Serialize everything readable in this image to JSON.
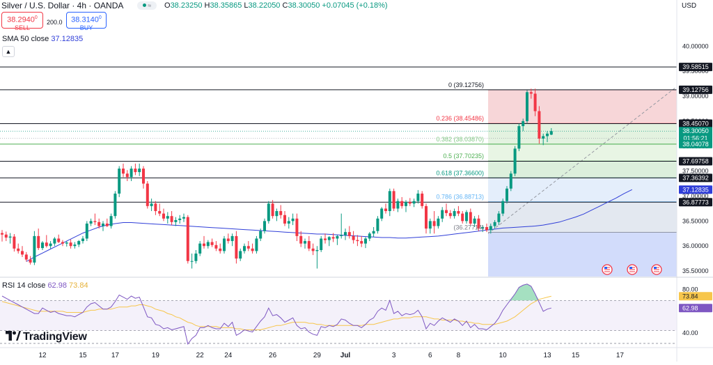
{
  "header": {
    "symbol_title": "Silver / U.S. Dollar · 4h · OANDA",
    "ohlc": {
      "o_label": "O",
      "o": "38.23250",
      "h_label": "H",
      "h": "38.35865",
      "l_label": "L",
      "l": "38.22050",
      "c_label": "C",
      "c": "38.30050",
      "change": "+0.07045 (+0.18%)"
    },
    "currency": "USD"
  },
  "trade": {
    "sell_price": "38.2940",
    "sell_sup": "0",
    "sell_label": "SELL",
    "spread": "200.0",
    "buy_price": "38.3140",
    "buy_sup": "0",
    "buy_label": "BUY"
  },
  "sma_legend": {
    "label": "SMA 50 close",
    "value": "37.12835"
  },
  "rsi_legend": {
    "label": "RSI 14 close",
    "value1": "62.98",
    "value2": "73.84"
  },
  "branding": {
    "logo_text": "TradingView"
  },
  "colors": {
    "up": "#089981",
    "down": "#f23645",
    "sma": "#2f3ed8",
    "rsi": "#7e57c2",
    "rsi_ma": "#f7c64b"
  },
  "chart_data": {
    "type": "candlestick",
    "price_axis": {
      "ylim": [
        35.39,
        40.06
      ],
      "ticks": [
        "40.00000",
        "39.50000",
        "39.00000",
        "38.50000",
        "38.00000",
        "37.50000",
        "37.00000",
        "36.50000",
        "36.00000",
        "35.50000"
      ],
      "tick_values": [
        40.0,
        39.5,
        39.0,
        38.5,
        38.0,
        37.5,
        37.0,
        36.5,
        36.0,
        35.5
      ]
    },
    "x_axis": {
      "labels": [
        "12",
        "15",
        "17",
        "19",
        "22",
        "24",
        "26",
        "29",
        "Jul",
        "3",
        "6",
        "8",
        "10",
        "13",
        "15",
        "17"
      ],
      "label_candles": [
        10,
        20,
        28,
        38,
        49,
        56,
        67,
        78,
        85,
        97,
        106,
        113,
        124,
        135,
        142,
        153
      ]
    },
    "candles_ohlc": [
      [
        36.26,
        36.32,
        36.09,
        36.23
      ],
      [
        36.23,
        36.29,
        36.1,
        36.17
      ],
      [
        36.17,
        36.26,
        36.05,
        36.19
      ],
      [
        36.19,
        36.24,
        35.89,
        35.95
      ],
      [
        35.95,
        36.05,
        35.85,
        35.9
      ],
      [
        35.9,
        36.0,
        35.78,
        35.83
      ],
      [
        35.83,
        35.88,
        35.69,
        35.73
      ],
      [
        35.73,
        35.8,
        35.63,
        35.67
      ],
      [
        35.67,
        36.3,
        35.62,
        36.2
      ],
      [
        36.2,
        36.35,
        35.92,
        35.96
      ],
      [
        35.96,
        36.1,
        35.92,
        36.07
      ],
      [
        36.07,
        36.22,
        35.97,
        36.0
      ],
      [
        36.0,
        36.1,
        35.95,
        36.05
      ],
      [
        36.05,
        36.18,
        36.0,
        36.15
      ],
      [
        36.15,
        36.23,
        36.06,
        36.08
      ],
      [
        36.08,
        36.12,
        36.0,
        36.05
      ],
      [
        36.05,
        36.1,
        35.99,
        36.07
      ],
      [
        36.07,
        36.13,
        35.95,
        36.0
      ],
      [
        36.0,
        36.08,
        35.95,
        36.03
      ],
      [
        36.03,
        36.12,
        35.98,
        36.1
      ],
      [
        36.1,
        36.2,
        36.05,
        36.15
      ],
      [
        36.15,
        36.5,
        36.1,
        36.45
      ],
      [
        36.45,
        36.55,
        36.4,
        36.5
      ],
      [
        36.5,
        36.65,
        36.42,
        36.48
      ],
      [
        36.48,
        36.55,
        36.35,
        36.4
      ],
      [
        36.4,
        36.5,
        36.3,
        36.45
      ],
      [
        36.45,
        36.55,
        36.38,
        36.4
      ],
      [
        36.4,
        36.65,
        36.35,
        36.6
      ],
      [
        36.6,
        37.1,
        36.55,
        37.05
      ],
      [
        37.05,
        37.6,
        36.98,
        37.55
      ],
      [
        37.55,
        37.65,
        37.38,
        37.45
      ],
      [
        37.45,
        37.52,
        37.3,
        37.38
      ],
      [
        37.38,
        37.6,
        37.3,
        37.55
      ],
      [
        37.55,
        37.65,
        37.42,
        37.48
      ],
      [
        37.48,
        37.65,
        37.4,
        37.55
      ],
      [
        37.55,
        37.6,
        37.15,
        37.25
      ],
      [
        37.25,
        37.3,
        36.75,
        36.8
      ],
      [
        36.8,
        36.95,
        36.7,
        36.85
      ],
      [
        36.85,
        36.9,
        36.62,
        36.7
      ],
      [
        36.7,
        36.85,
        36.6,
        36.65
      ],
      [
        36.65,
        36.75,
        36.5,
        36.55
      ],
      [
        36.55,
        36.68,
        36.45,
        36.6
      ],
      [
        36.6,
        36.7,
        36.42,
        36.48
      ],
      [
        36.48,
        36.58,
        36.4,
        36.52
      ],
      [
        36.52,
        36.62,
        36.45,
        36.55
      ],
      [
        36.55,
        36.65,
        36.48,
        36.58
      ],
      [
        36.58,
        36.62,
        35.65,
        35.7
      ],
      [
        35.7,
        35.85,
        35.55,
        35.7
      ],
      [
        35.7,
        35.92,
        35.65,
        35.85
      ],
      [
        35.85,
        36.1,
        35.8,
        36.05
      ],
      [
        36.05,
        36.2,
        35.95,
        36.0
      ],
      [
        36.0,
        36.12,
        35.95,
        36.08
      ],
      [
        36.08,
        36.15,
        35.98,
        36.02
      ],
      [
        36.02,
        36.1,
        35.9,
        35.95
      ],
      [
        35.95,
        36.05,
        35.85,
        35.9
      ],
      [
        35.9,
        36.2,
        35.85,
        36.15
      ],
      [
        36.15,
        36.25,
        36.05,
        36.1
      ],
      [
        36.1,
        36.25,
        36.0,
        36.2
      ],
      [
        36.2,
        36.3,
        35.65,
        35.75
      ],
      [
        35.75,
        35.95,
        35.7,
        35.9
      ],
      [
        35.9,
        36.05,
        35.85,
        36.0
      ],
      [
        36.0,
        36.1,
        35.9,
        35.95
      ],
      [
        35.95,
        36.05,
        35.85,
        35.9
      ],
      [
        35.9,
        36.2,
        35.85,
        36.15
      ],
      [
        36.15,
        36.35,
        36.1,
        36.3
      ],
      [
        36.3,
        36.55,
        36.25,
        36.5
      ],
      [
        36.5,
        36.9,
        36.45,
        36.85
      ],
      [
        36.85,
        36.92,
        36.55,
        36.6
      ],
      [
        36.6,
        36.75,
        36.5,
        36.7
      ],
      [
        36.7,
        36.82,
        36.55,
        36.62
      ],
      [
        36.62,
        36.7,
        36.4,
        36.45
      ],
      [
        36.45,
        36.58,
        36.35,
        36.5
      ],
      [
        36.5,
        36.65,
        36.42,
        36.55
      ],
      [
        36.55,
        36.65,
        36.1,
        36.2
      ],
      [
        36.2,
        36.3,
        35.98,
        36.05
      ],
      [
        36.05,
        36.15,
        35.95,
        36.1
      ],
      [
        36.1,
        36.2,
        35.9,
        35.95
      ],
      [
        35.95,
        36.05,
        35.82,
        35.9
      ],
      [
        35.9,
        36.0,
        35.55,
        35.92
      ],
      [
        35.92,
        36.2,
        35.88,
        36.15
      ],
      [
        36.15,
        36.25,
        36.05,
        36.12
      ],
      [
        36.12,
        36.2,
        36.0,
        36.18
      ],
      [
        36.18,
        36.26,
        36.08,
        36.15
      ],
      [
        36.15,
        36.22,
        36.02,
        36.2
      ],
      [
        36.2,
        36.65,
        36.15,
        36.22
      ],
      [
        36.22,
        36.35,
        36.12,
        36.28
      ],
      [
        36.28,
        36.4,
        36.15,
        36.2
      ],
      [
        36.2,
        36.3,
        36.05,
        36.12
      ],
      [
        36.12,
        36.22,
        36.0,
        36.1
      ],
      [
        36.1,
        36.2,
        35.98,
        36.05
      ],
      [
        36.05,
        36.18,
        35.96,
        36.15
      ],
      [
        36.15,
        36.28,
        36.1,
        36.25
      ],
      [
        36.25,
        36.38,
        36.18,
        36.3
      ],
      [
        36.3,
        36.6,
        36.25,
        36.55
      ],
      [
        36.55,
        36.78,
        36.5,
        36.75
      ],
      [
        36.75,
        36.85,
        36.65,
        36.7
      ],
      [
        36.7,
        37.15,
        36.6,
        37.1
      ],
      [
        37.1,
        37.15,
        36.7,
        36.75
      ],
      [
        36.75,
        36.95,
        36.68,
        36.9
      ],
      [
        36.9,
        36.98,
        36.75,
        36.8
      ],
      [
        36.8,
        36.92,
        36.68,
        36.88
      ],
      [
        36.88,
        36.96,
        36.8,
        36.85
      ],
      [
        36.85,
        36.95,
        36.78,
        36.9
      ],
      [
        36.9,
        37.12,
        36.85,
        37.05
      ],
      [
        37.05,
        37.1,
        36.75,
        36.8
      ],
      [
        36.8,
        36.85,
        36.25,
        36.35
      ],
      [
        36.35,
        36.55,
        36.25,
        36.5
      ],
      [
        36.5,
        36.7,
        36.25,
        36.4
      ],
      [
        36.4,
        36.6,
        36.35,
        36.55
      ],
      [
        36.55,
        36.78,
        36.48,
        36.72
      ],
      [
        36.72,
        36.85,
        36.6,
        36.66
      ],
      [
        36.66,
        36.72,
        36.55,
        36.6
      ],
      [
        36.6,
        36.75,
        36.55,
        36.7
      ],
      [
        36.7,
        36.8,
        36.6,
        36.65
      ],
      [
        36.65,
        36.7,
        36.45,
        36.5
      ],
      [
        36.5,
        36.72,
        36.45,
        36.68
      ],
      [
        36.68,
        36.75,
        36.4,
        36.45
      ],
      [
        36.45,
        36.6,
        36.38,
        36.55
      ],
      [
        36.55,
        36.62,
        36.3,
        36.35
      ],
      [
        36.35,
        36.42,
        36.28,
        36.38
      ],
      [
        36.38,
        36.45,
        36.28,
        36.32
      ],
      [
        36.32,
        36.45,
        36.25,
        36.4
      ],
      [
        36.4,
        36.52,
        36.35,
        36.48
      ],
      [
        36.48,
        36.7,
        36.42,
        36.65
      ],
      [
        36.65,
        36.95,
        36.6,
        36.9
      ],
      [
        36.9,
        37.2,
        36.85,
        37.15
      ],
      [
        37.15,
        37.5,
        37.1,
        37.45
      ],
      [
        37.45,
        38.0,
        37.4,
        37.95
      ],
      [
        37.95,
        38.45,
        37.9,
        38.4
      ],
      [
        38.4,
        38.55,
        38.3,
        38.5
      ],
      [
        38.5,
        39.12,
        38.45,
        39.08
      ],
      [
        39.08,
        39.15,
        38.95,
        39.05
      ],
      [
        39.05,
        39.15,
        38.6,
        38.7
      ],
      [
        38.7,
        38.8,
        38.05,
        38.15
      ],
      [
        38.15,
        38.25,
        38.02,
        38.2
      ],
      [
        38.2,
        38.3,
        38.08,
        38.25
      ],
      [
        38.23,
        38.36,
        38.22,
        38.3
      ]
    ],
    "sma50": [
      35.69,
      35.78,
      35.86,
      35.94,
      36.02,
      36.1,
      36.18,
      36.26,
      36.32,
      36.38,
      36.42,
      36.45,
      36.47,
      36.47,
      36.46,
      36.45,
      36.44,
      36.43,
      36.42,
      36.41,
      36.4,
      36.39,
      36.38,
      36.37,
      36.36,
      36.35,
      36.34,
      36.33,
      36.32,
      36.31,
      36.3,
      36.29,
      36.28,
      36.27,
      36.26,
      36.25,
      36.24,
      36.24,
      36.23,
      36.22,
      36.21,
      36.2,
      36.19,
      36.18,
      36.17,
      36.17,
      36.16,
      36.16,
      36.17,
      36.18,
      36.19,
      36.2,
      36.22,
      36.24,
      36.26,
      36.28,
      36.3,
      36.32,
      36.34,
      36.36,
      36.37,
      36.38,
      36.39,
      36.4,
      36.42,
      36.45,
      36.48,
      36.53,
      36.58,
      36.64,
      36.72,
      36.8,
      36.88,
      36.96,
      37.05,
      37.13
    ],
    "sma_start_candle": 6,
    "sma_step": 2,
    "fib_retracement": {
      "levels": [
        {
          "ratio": "0",
          "price": 39.12756,
          "label": "0 (39.12756)"
        },
        {
          "ratio": "0.236",
          "price": 38.45486,
          "label": "0.236 (38.45486)"
        },
        {
          "ratio": "0.382",
          "price": 38.0387,
          "label": "0.382 (38.03870)"
        },
        {
          "ratio": "0.5",
          "price": 37.70235,
          "label": "0.5 (37.70235)"
        },
        {
          "ratio": "0.618",
          "price": 37.366,
          "label": "0.618 (37.36600)"
        },
        {
          "ratio": "0.786",
          "price": 36.88713,
          "label": "0.786 (36.88713)"
        },
        {
          "ratio": "1",
          "price": 36.27714,
          "label": "(36.27714)"
        }
      ],
      "start_candle": 120,
      "end_candle": 153
    },
    "horizontal_lines": [
      39.58515,
      39.12756,
      38.4507,
      38.04078,
      37.69758,
      37.36392,
      36.87773
    ],
    "price_labels": [
      {
        "text": "39.58515",
        "price": 39.58515,
        "style": "dark"
      },
      {
        "text": "39.12756",
        "price": 39.12756,
        "style": "dark"
      },
      {
        "text": "38.45070",
        "price": 38.4507,
        "style": "dark"
      },
      {
        "text": "38.30050",
        "price": 38.3005,
        "style": "green"
      },
      {
        "text": "01:56:21",
        "price": 38.16,
        "style": "green"
      },
      {
        "text": "38.04078",
        "price": 38.04078,
        "style": "green"
      },
      {
        "text": "37.69758",
        "price": 37.69758,
        "style": "dark"
      },
      {
        "text": "37.36392",
        "price": 37.36392,
        "style": "dark"
      },
      {
        "text": "37.12835",
        "price": 37.12835,
        "style": "blue"
      },
      {
        "text": "36.87773",
        "price": 36.87773,
        "style": "dark"
      }
    ],
    "rsi": {
      "ylim": [
        28,
        90
      ],
      "ticks": [
        "80.00",
        "40.00"
      ],
      "tick_values": [
        80,
        40
      ],
      "bands": [
        70,
        50
      ],
      "rsi_values": [
        74,
        72,
        70,
        68,
        66,
        64,
        62,
        60,
        58,
        58,
        63,
        61,
        59,
        60,
        58,
        57,
        56,
        56,
        55,
        57,
        59,
        64,
        67,
        68,
        65,
        62,
        62,
        64,
        69,
        75,
        73,
        71,
        74,
        72,
        73,
        64,
        55,
        54,
        48,
        47,
        44,
        45,
        43,
        44,
        45,
        46,
        30,
        35,
        38,
        45,
        45,
        47,
        45,
        44,
        44,
        49,
        46,
        50,
        38,
        40,
        43,
        42,
        41,
        46,
        51,
        55,
        63,
        56,
        57,
        54,
        50,
        52,
        54,
        47,
        44,
        45,
        41,
        39,
        38,
        46,
        45,
        47,
        46,
        48,
        53,
        52,
        49,
        47,
        47,
        45,
        48,
        52,
        54,
        60,
        63,
        61,
        70,
        58,
        60,
        56,
        58,
        57,
        58,
        61,
        55,
        44,
        49,
        47,
        51,
        54,
        52,
        50,
        53,
        51,
        47,
        51,
        45,
        48,
        44,
        44,
        43,
        46,
        49,
        54,
        61,
        66,
        71,
        76,
        82,
        84,
        85,
        83,
        76,
        68,
        60,
        62,
        63
      ],
      "rsi_ma": [
        69,
        68,
        67,
        66,
        65,
        64,
        63,
        62,
        61,
        60,
        60,
        60,
        60,
        60,
        60,
        60,
        59,
        59,
        59,
        59,
        59,
        60,
        61,
        61,
        62,
        62,
        62,
        62,
        63,
        64,
        64,
        64,
        65,
        65,
        66,
        66,
        65,
        64,
        62,
        61,
        60,
        58,
        57,
        55,
        54,
        52,
        50,
        49,
        47,
        46,
        46,
        46,
        46,
        46,
        45,
        45,
        45,
        45,
        44,
        44,
        43,
        43,
        43,
        43,
        43,
        44,
        45,
        46,
        47,
        47,
        48,
        49,
        50,
        50,
        50,
        50,
        49,
        49,
        48,
        48,
        47,
        47,
        47,
        47,
        47,
        47,
        47,
        47,
        47,
        47,
        48,
        48,
        48,
        49,
        50,
        51,
        52,
        53,
        53,
        54,
        54,
        54,
        55,
        55,
        55,
        55,
        54,
        53,
        53,
        52,
        52,
        52,
        52,
        51,
        51,
        50,
        50,
        49,
        49,
        48,
        48,
        48,
        48,
        49,
        50,
        51,
        53,
        55,
        58,
        61,
        64,
        67,
        69,
        71,
        72,
        73,
        73.84
      ]
    },
    "events_icons": [
      "flag-icon",
      "flag-icon",
      "flag-icon"
    ]
  }
}
